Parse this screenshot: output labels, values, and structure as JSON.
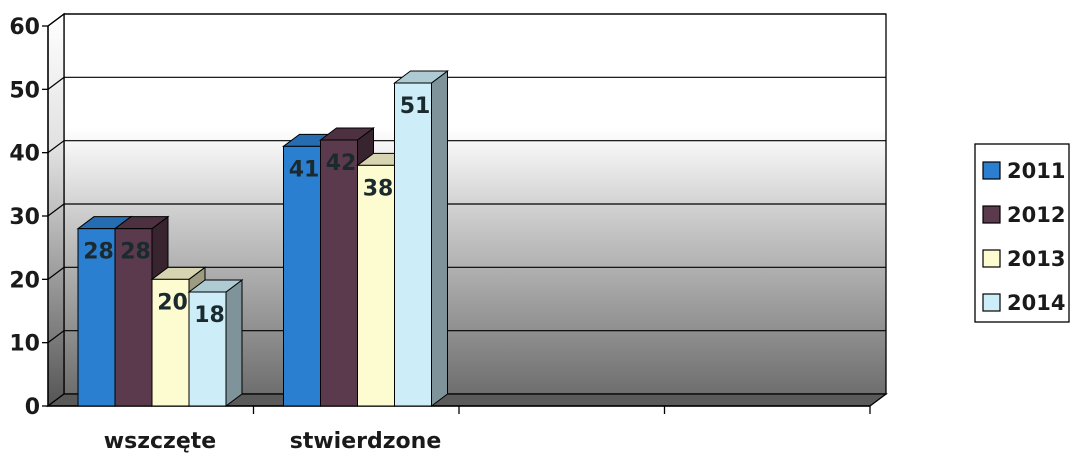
{
  "chart_data": {
    "type": "bar",
    "categories": [
      "wszczęte",
      "stwierdzone"
    ],
    "series": [
      {
        "name": "2011",
        "values": [
          28,
          41
        ],
        "color": "#2b7fd0"
      },
      {
        "name": "2012",
        "values": [
          28,
          42
        ],
        "color": "#5a3a4c"
      },
      {
        "name": "2013",
        "values": [
          20,
          38
        ],
        "color": "#fdfbd0"
      },
      {
        "name": "2014",
        "values": [
          18,
          51
        ],
        "color": "#cdeef8"
      }
    ],
    "ylim": [
      0,
      60
    ],
    "yticks": [
      "0",
      "10",
      "20",
      "30",
      "40",
      "50",
      "60"
    ],
    "grid": true,
    "legend": "right",
    "three_d": true
  }
}
